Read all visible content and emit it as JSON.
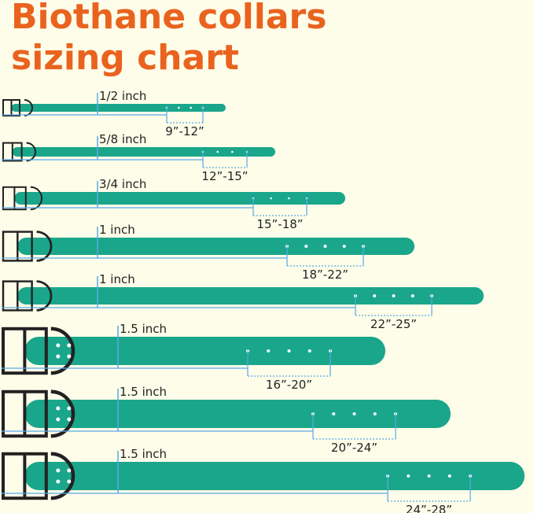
{
  "header": {
    "title_line1": "Biothane collars",
    "title_line2": "sizing chart"
  },
  "collars": [
    {
      "width": "1/2 inch",
      "size": "9”-12”"
    },
    {
      "width": "5/8 inch",
      "size": "12”-15”"
    },
    {
      "width": "3/4 inch",
      "size": "15”-18”"
    },
    {
      "width": "1 inch",
      "size": "18”-22”"
    },
    {
      "width": "1 inch",
      "size": "22”-25”"
    },
    {
      "width": "1.5 inch",
      "size": "16”-20”"
    },
    {
      "width": "1.5 inch",
      "size": "20”-24”"
    },
    {
      "width": "1.5 inch",
      "size": "24”-28”"
    }
  ]
}
